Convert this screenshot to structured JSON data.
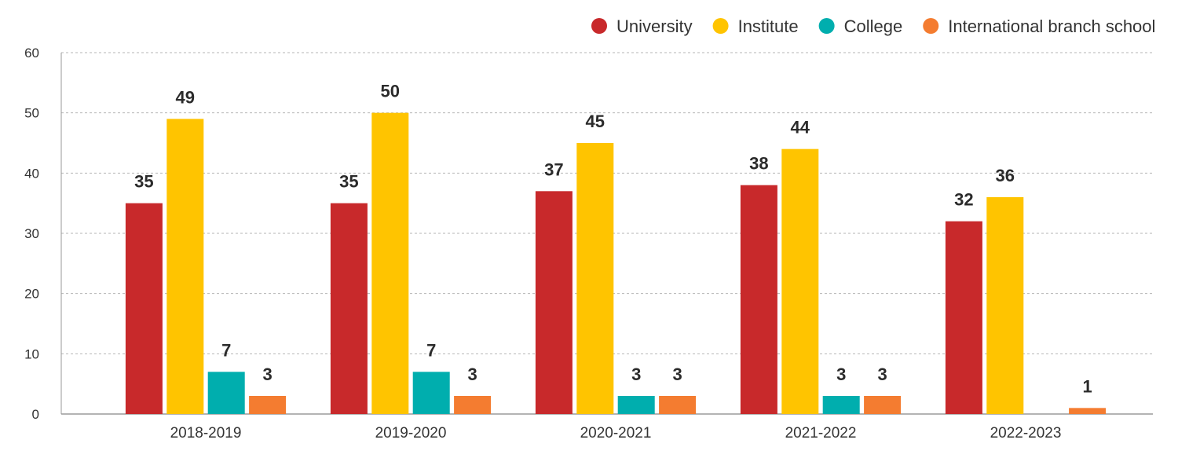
{
  "chart_data": {
    "type": "bar",
    "categories": [
      "2018-2019",
      "2019-2020",
      "2020-2021",
      "2021-2022",
      "2022-2023"
    ],
    "series": [
      {
        "name": "University",
        "color": "#C8292B",
        "values": [
          35,
          35,
          37,
          38,
          32
        ]
      },
      {
        "name": "Institute",
        "color": "#FFC400",
        "values": [
          49,
          50,
          45,
          44,
          36
        ]
      },
      {
        "name": "College",
        "color": "#00AEAE",
        "values": [
          7,
          7,
          3,
          3,
          null
        ]
      },
      {
        "name": "International branch school",
        "color": "#F47C30",
        "values": [
          3,
          3,
          3,
          3,
          1
        ]
      }
    ],
    "yticks": [
      0,
      10,
      20,
      30,
      40,
      50,
      60
    ],
    "ylim": [
      0,
      60
    ],
    "grid": "horizontal-dashed",
    "legend_position": "top-right",
    "title": "",
    "xlabel": "",
    "ylabel": ""
  }
}
